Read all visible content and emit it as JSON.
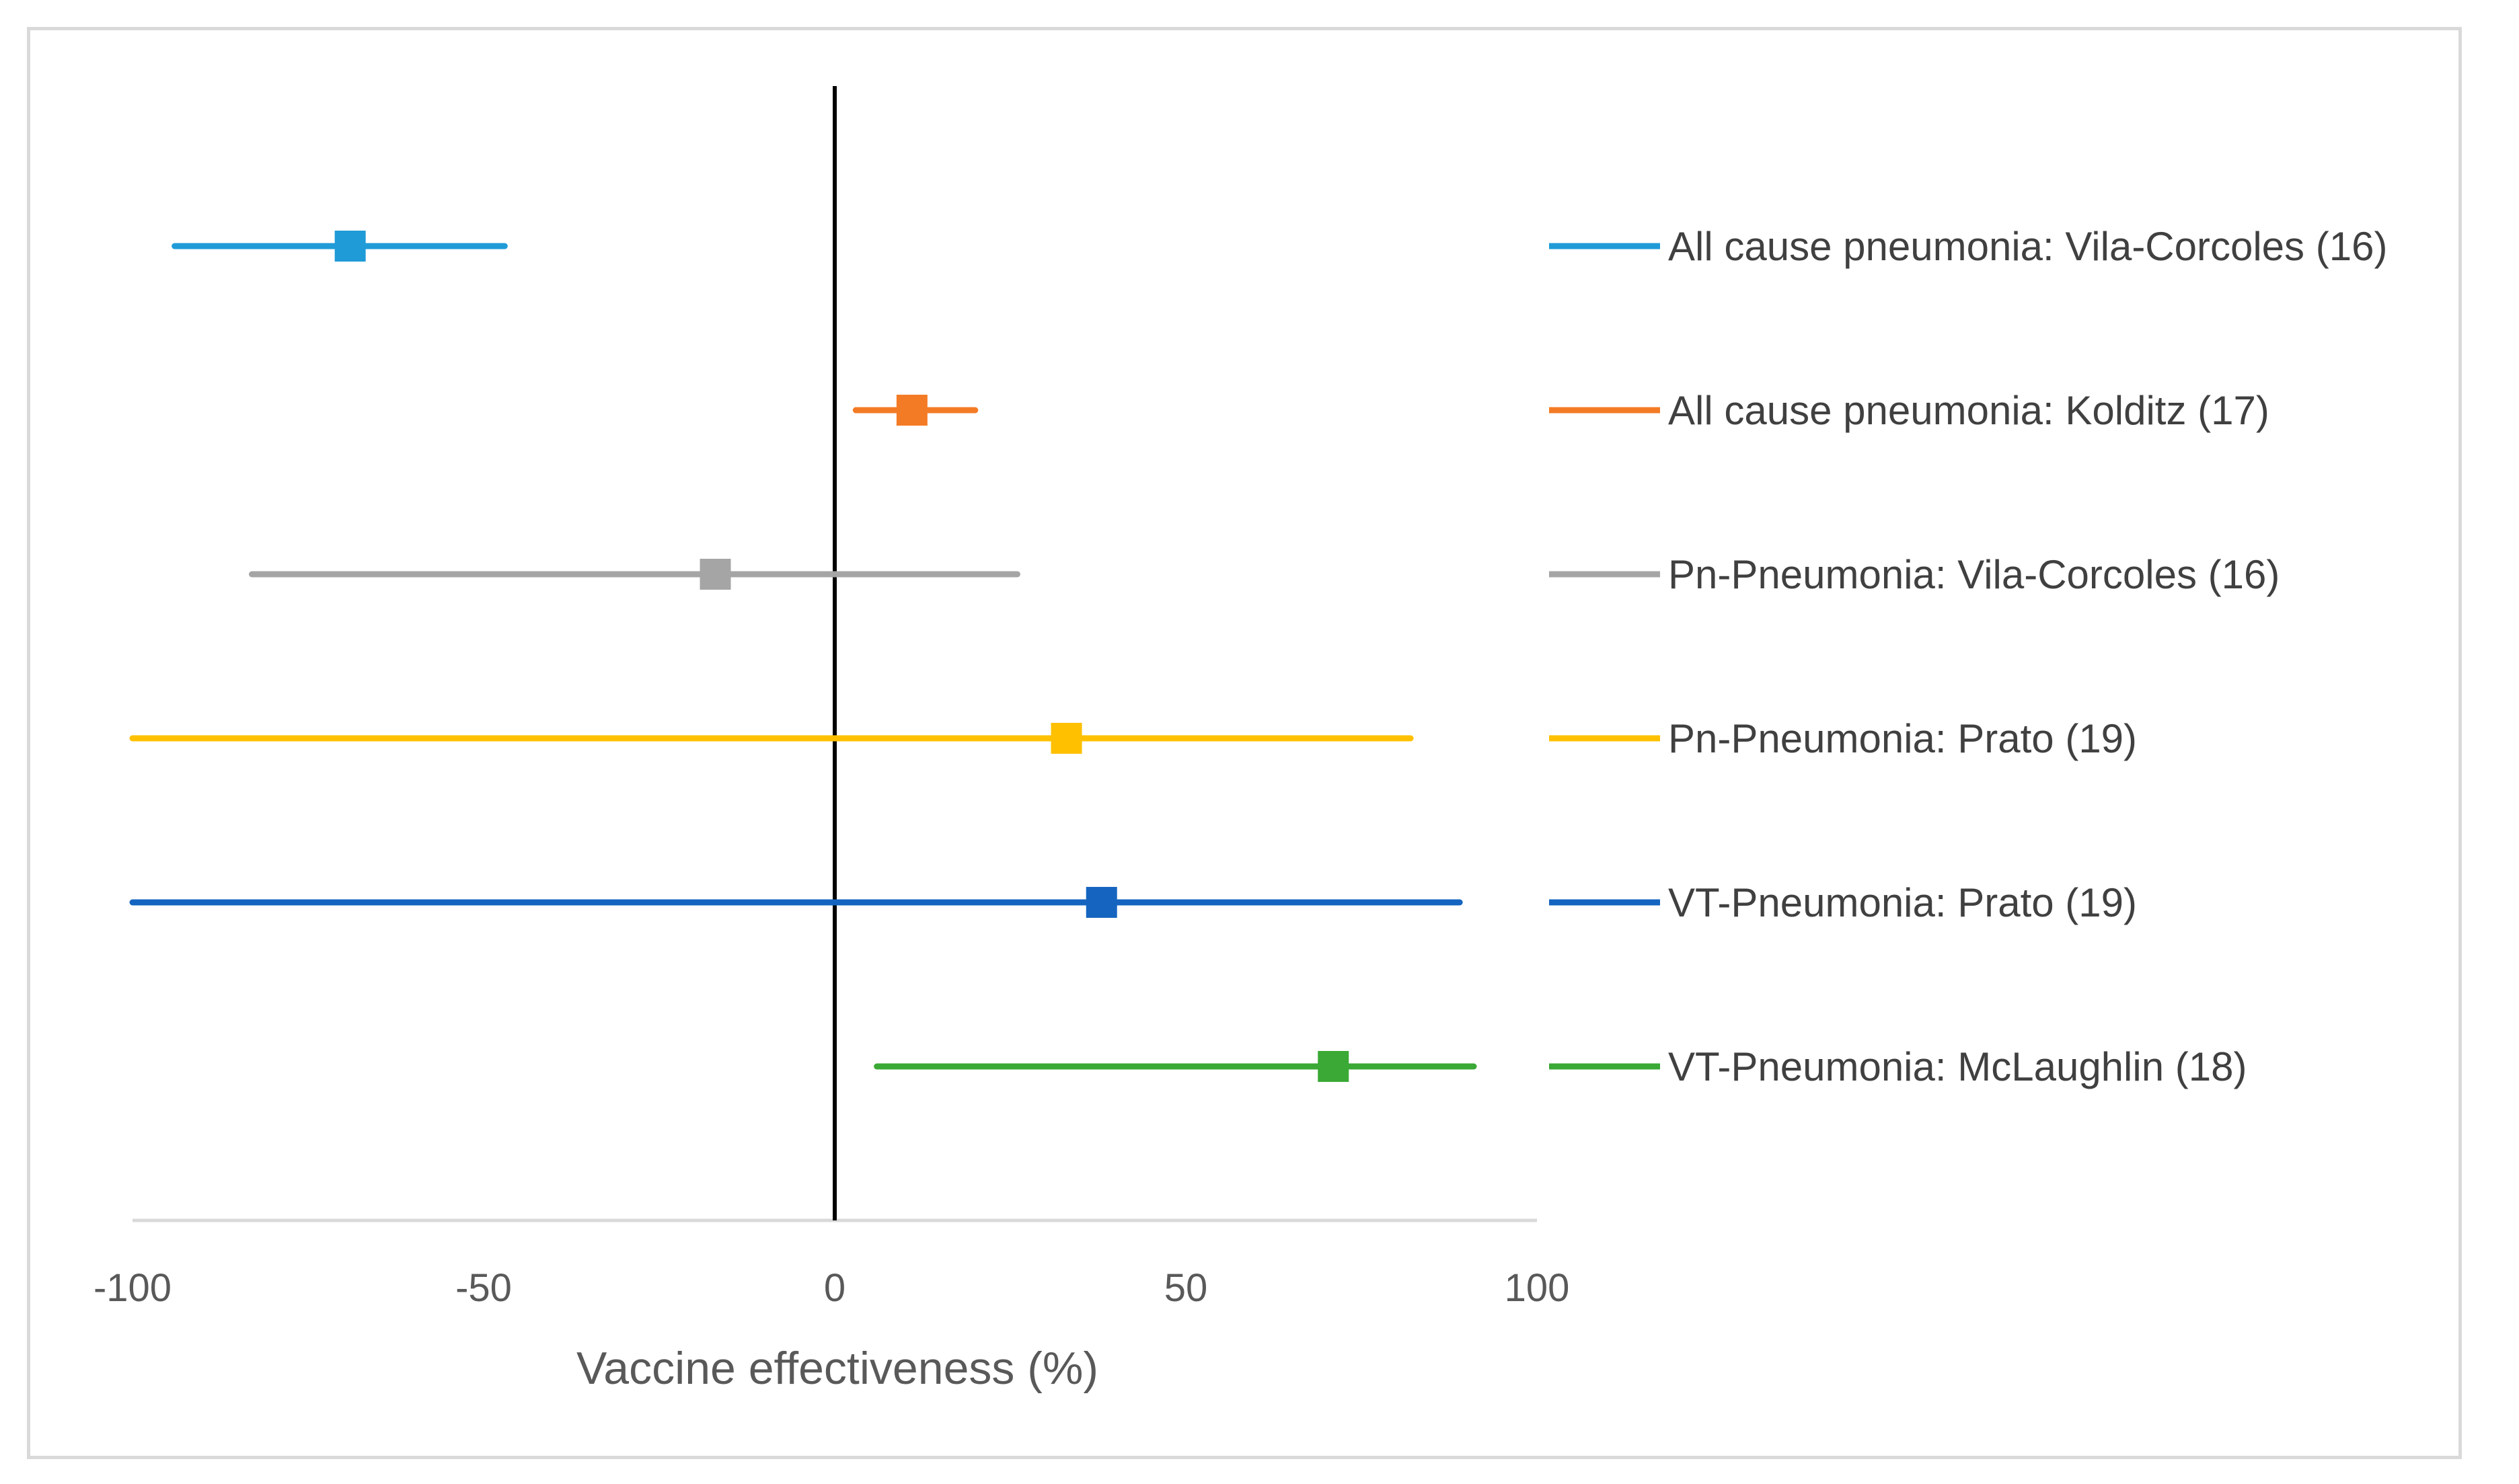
{
  "chart_data": {
    "type": "forest",
    "xlabel": "Vaccine effectiveness  (%)",
    "xlim": [
      -100,
      100
    ],
    "xticks": [
      -100,
      -50,
      0,
      50,
      100
    ],
    "tick_labels": [
      "-100",
      "-50",
      "0",
      "50",
      "100"
    ],
    "reference_line": 0,
    "legend_position": "right",
    "series": [
      {
        "name": "All cause pneumonia: Vila-Corcoles (16)",
        "estimate": -69,
        "ci_low": -94,
        "ci_high": -47,
        "color": "#1f9bd8"
      },
      {
        "name": "All cause pneumonia: Kolditz (17)",
        "estimate": 11,
        "ci_low": 3,
        "ci_high": 20,
        "color": "#f47b25"
      },
      {
        "name": "Pn-Pneumonia: Vila-Corcoles (16)",
        "estimate": -17,
        "ci_low": -83,
        "ci_high": 26,
        "color": "#a5a5a5"
      },
      {
        "name": "Pn-Pneumonia: Prato (19)",
        "estimate": 33,
        "ci_low": -100,
        "ci_high": 82,
        "color": "#ffc000"
      },
      {
        "name": "VT-Pneumonia: Prato (19)",
        "estimate": 38,
        "ci_low": -100,
        "ci_high": 89,
        "color": "#1565c0"
      },
      {
        "name": "VT-Pneumonia: McLaughlin (18)",
        "estimate": 71,
        "ci_low": 6,
        "ci_high": 91,
        "color": "#3aa935"
      }
    ]
  }
}
